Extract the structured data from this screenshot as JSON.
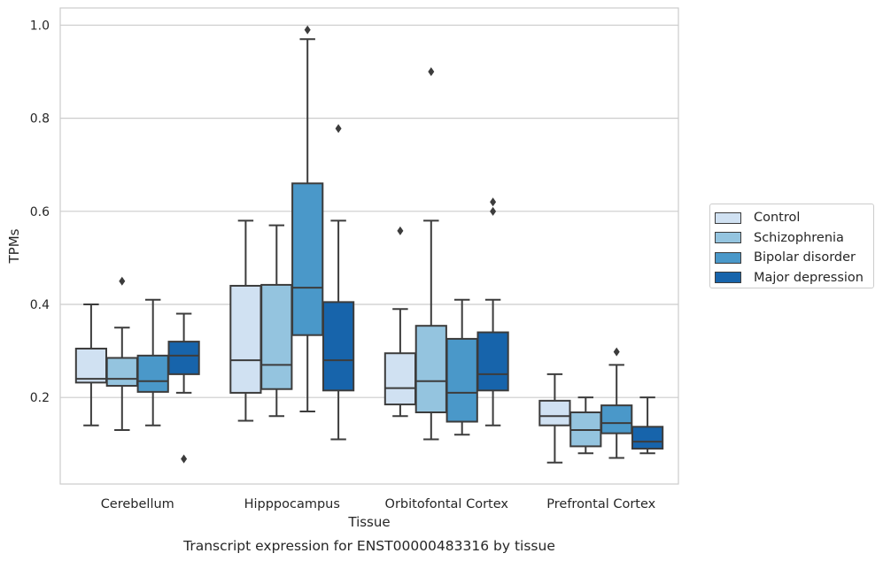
{
  "chart_data": {
    "type": "box",
    "title": "Transcript expression for ENST00000483316 by tissue",
    "xlabel": "Tissue",
    "ylabel": "TPMs",
    "ylim": [
      0.014,
      1.037
    ],
    "yticks": [
      0.2,
      0.4,
      0.6,
      0.8,
      1.0
    ],
    "ytick_labels": [
      "0.2",
      "0.4",
      "0.6",
      "0.8",
      "1.0"
    ],
    "grid": "horizontal",
    "legend_position": "right",
    "categories": [
      "Cerebellum",
      "Hipppocampus",
      "Orbitofontal Cortex",
      "Prefrontal Cortex"
    ],
    "series": [
      {
        "name": "Control",
        "color": "#d0e1f2",
        "boxes": [
          {
            "min": 0.14,
            "q1": 0.232,
            "median": 0.24,
            "q3": 0.305,
            "max": 0.4,
            "outliers": []
          },
          {
            "min": 0.15,
            "q1": 0.21,
            "median": 0.28,
            "q3": 0.44,
            "max": 0.58,
            "outliers": []
          },
          {
            "min": 0.16,
            "q1": 0.185,
            "median": 0.22,
            "q3": 0.295,
            "max": 0.39,
            "outliers": [
              0.558
            ]
          },
          {
            "min": 0.06,
            "q1": 0.14,
            "median": 0.16,
            "q3": 0.193,
            "max": 0.25,
            "outliers": []
          }
        ]
      },
      {
        "name": "Schizophrenia",
        "color": "#94c4df",
        "boxes": [
          {
            "min": 0.13,
            "q1": 0.225,
            "median": 0.24,
            "q3": 0.285,
            "max": 0.35,
            "outliers": [
              0.45
            ]
          },
          {
            "min": 0.16,
            "q1": 0.218,
            "median": 0.27,
            "q3": 0.442,
            "max": 0.57,
            "outliers": []
          },
          {
            "min": 0.11,
            "q1": 0.168,
            "median": 0.235,
            "q3": 0.354,
            "max": 0.58,
            "outliers": [
              0.9
            ]
          },
          {
            "min": 0.08,
            "q1": 0.095,
            "median": 0.13,
            "q3": 0.168,
            "max": 0.2,
            "outliers": []
          }
        ]
      },
      {
        "name": "Bipolar disorder",
        "color": "#4a98c9",
        "boxes": [
          {
            "min": 0.14,
            "q1": 0.212,
            "median": 0.235,
            "q3": 0.29,
            "max": 0.41,
            "outliers": []
          },
          {
            "min": 0.17,
            "q1": 0.334,
            "median": 0.436,
            "q3": 0.66,
            "max": 0.97,
            "outliers": [
              0.99
            ]
          },
          {
            "min": 0.12,
            "q1": 0.148,
            "median": 0.21,
            "q3": 0.326,
            "max": 0.41,
            "outliers": []
          },
          {
            "min": 0.07,
            "q1": 0.123,
            "median": 0.145,
            "q3": 0.183,
            "max": 0.27,
            "outliers": [
              0.298
            ]
          }
        ]
      },
      {
        "name": "Major depression",
        "color": "#1764ab",
        "boxes": [
          {
            "min": 0.21,
            "q1": 0.25,
            "median": 0.29,
            "q3": 0.32,
            "max": 0.38,
            "outliers": [
              0.068
            ]
          },
          {
            "min": 0.11,
            "q1": 0.215,
            "median": 0.28,
            "q3": 0.405,
            "max": 0.58,
            "outliers": [
              0.778
            ]
          },
          {
            "min": 0.14,
            "q1": 0.215,
            "median": 0.25,
            "q3": 0.34,
            "max": 0.41,
            "outliers": [
              0.6,
              0.62
            ]
          },
          {
            "min": 0.08,
            "q1": 0.09,
            "median": 0.105,
            "q3": 0.137,
            "max": 0.2,
            "outliers": []
          }
        ]
      }
    ]
  }
}
